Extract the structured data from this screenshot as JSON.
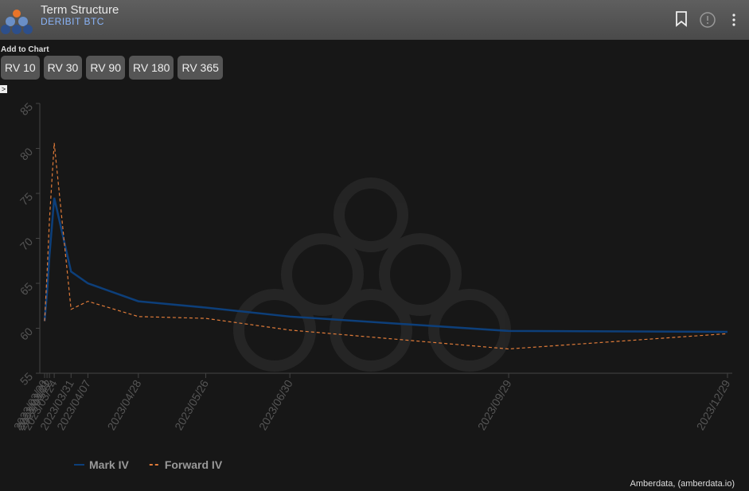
{
  "header": {
    "title": "Term Structure",
    "subtitle": "DERIBIT BTC"
  },
  "toolbar": {
    "label": "Add to Chart",
    "buttons": [
      "RV 10",
      "RV 30",
      "RV 90",
      "RV 180",
      "RV 365"
    ],
    "toggle": ">"
  },
  "chart_data": {
    "type": "line",
    "x": [
      "2023/03/20",
      "2023/03/21",
      "2023/03/22",
      "2023/03/24",
      "2023/03/31",
      "2023/04/07",
      "2023/04/28",
      "2023/05/26",
      "2023/06/30",
      "2023/09/29",
      "2023/12/29"
    ],
    "xlim": [
      "2023/03/18",
      "2023/12/31"
    ],
    "ylim": [
      55,
      85
    ],
    "yticks": [
      55,
      60,
      65,
      70,
      75,
      80,
      85
    ],
    "series": [
      {
        "name": "Mark IV",
        "color": "#0d3f7a",
        "dash": false,
        "values": [
          60.8,
          64,
          68,
          74.5,
          66.3,
          65.0,
          63.0,
          62.3,
          61.3,
          59.7,
          59.6
        ]
      },
      {
        "name": "Forward IV",
        "color": "#e07b39",
        "dash": true,
        "values": [
          60.8,
          66,
          72,
          80.6,
          62.1,
          63.0,
          61.3,
          61.1,
          59.8,
          57.7,
          59.4
        ]
      }
    ]
  },
  "footer": {
    "credit": "Amberdata, (amberdata.io)"
  }
}
